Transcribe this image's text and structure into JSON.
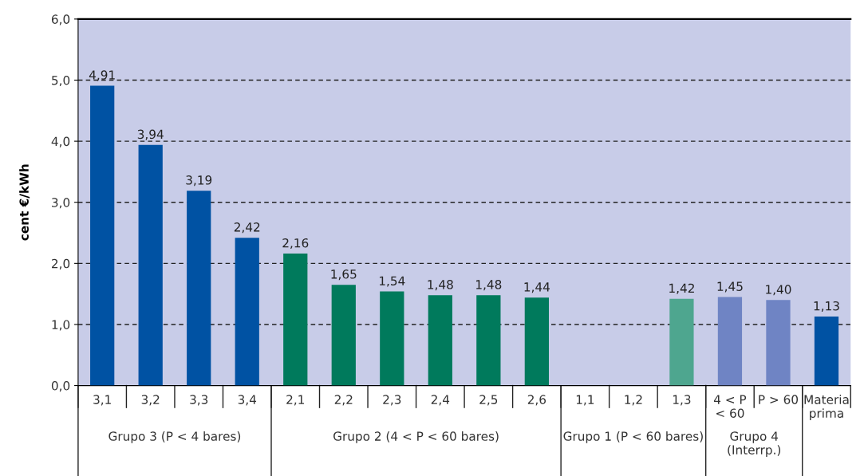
{
  "chart_data": {
    "type": "bar",
    "ylabel": "cent €/kWh",
    "categories": [
      "3,1",
      "3,2",
      "3,3",
      "3,4",
      "2,1",
      "2,2",
      "2,3",
      "2,4",
      "2,5",
      "2,6",
      "1,1",
      "1,2",
      "1,3",
      "4 < P\n< 60",
      "P > 60",
      "Materia\nprima"
    ],
    "values": [
      4.91,
      3.94,
      3.19,
      2.42,
      2.16,
      1.65,
      1.54,
      1.48,
      1.48,
      1.44,
      null,
      null,
      1.42,
      1.45,
      1.4,
      1.13
    ],
    "colors": [
      "#0052a3",
      "#0052a3",
      "#0052a3",
      "#0052a3",
      "#007a5c",
      "#007a5c",
      "#007a5c",
      "#007a5c",
      "#007a5c",
      "#007a5c",
      "#4ea68f",
      "#4ea68f",
      "#4ea68f",
      "#6f84c4",
      "#6f84c4",
      "#0052a3"
    ],
    "value_labels": [
      "4,91",
      "3,94",
      "3,19",
      "2,42",
      "2,16",
      "1,65",
      "1,54",
      "1,48",
      "1,48",
      "1,44",
      null,
      null,
      "1,42",
      "1,45",
      "1,40",
      "1,13"
    ],
    "ylim": [
      0,
      6
    ],
    "yticks": [
      {
        "value": 0,
        "label": "0,0"
      },
      {
        "value": 1,
        "label": "1,0"
      },
      {
        "value": 2,
        "label": "2,0"
      },
      {
        "value": 3,
        "label": "3,0"
      },
      {
        "value": 4,
        "label": "4,0"
      },
      {
        "value": 5,
        "label": "5,0"
      },
      {
        "value": 6,
        "label": "6,0"
      }
    ],
    "grid": "y",
    "annotations": [
      "Grupo 3 (P < 4 bares)",
      "Grupo 2 (4 < P < 60 bares)",
      "Grupo 1 (P < 60 bares)",
      "Grupo 4\n(Interrp.)"
    ]
  }
}
